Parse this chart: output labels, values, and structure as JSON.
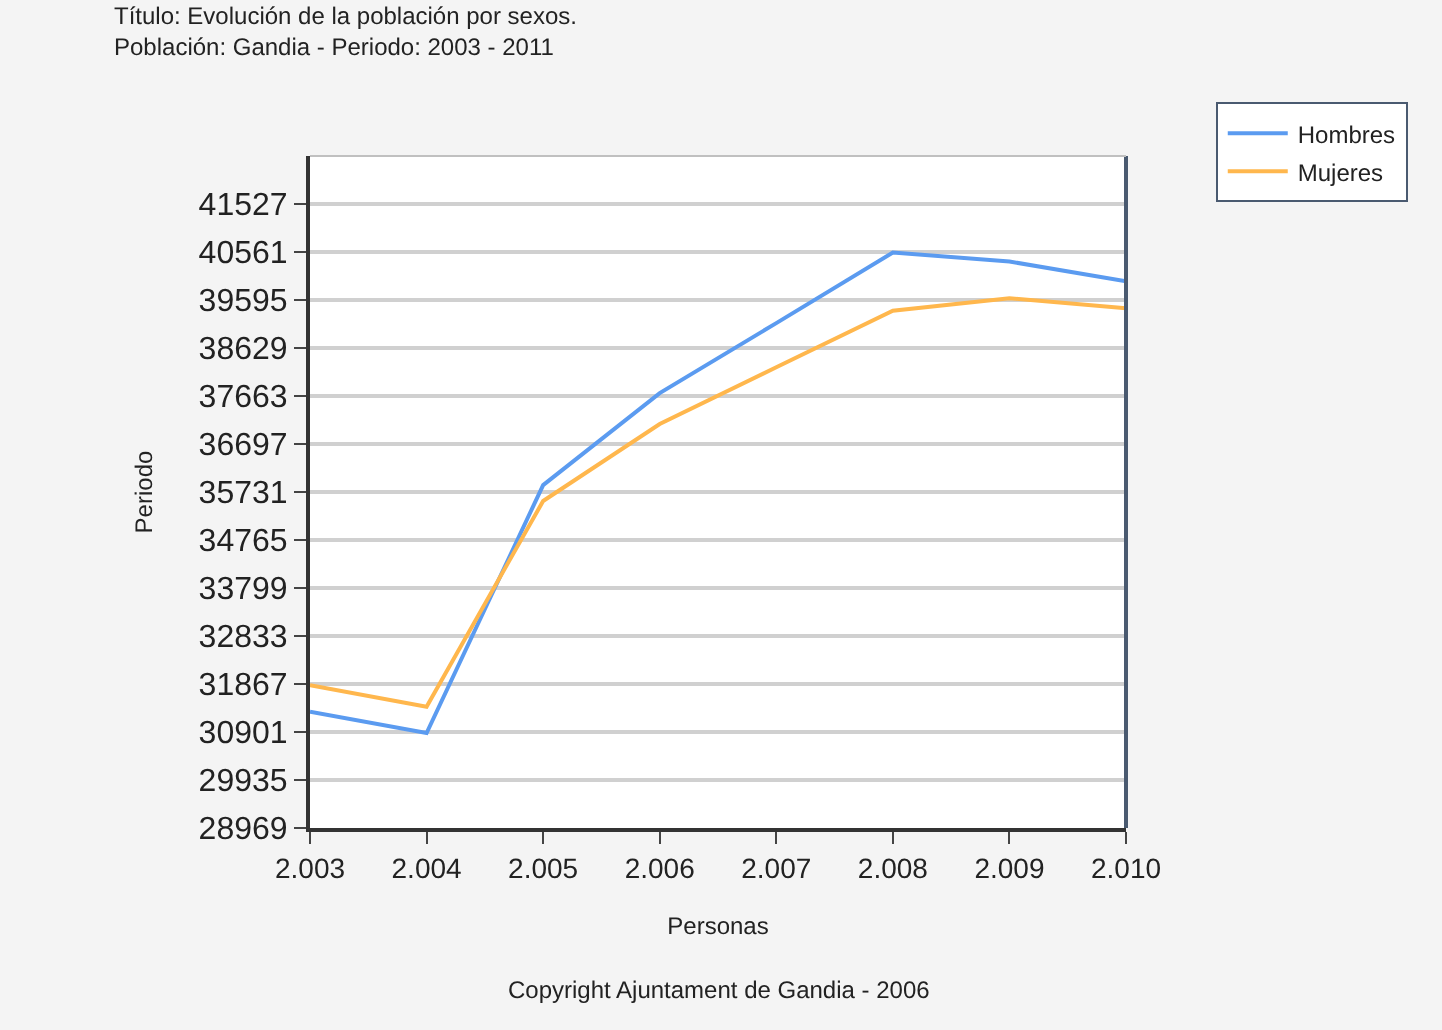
{
  "chart_data": {
    "type": "line",
    "title": "Título: Evolución de la población por sexos.",
    "subtitle": "Población: Gandia - Periodo: 2003 - 2011",
    "xlabel": "Personas",
    "ylabel": "Periodo",
    "annotations": [
      "Copyright Ajuntament de Gandia - 2006"
    ],
    "x": [
      2003,
      2004,
      2005,
      2006,
      2007,
      2008,
      2009,
      2010
    ],
    "series": [
      {
        "name": "Hombres",
        "color": "#5b9bf0",
        "values": [
          31310,
          30880,
          35870,
          37720,
          39130,
          40550,
          40370,
          39970
        ]
      },
      {
        "name": "Mujeres",
        "color": "#ffb74d",
        "values": [
          31840,
          31410,
          35550,
          37100,
          38240,
          39380,
          39630,
          39430
        ]
      }
    ],
    "xlim": [
      2003,
      2010
    ],
    "xticks": [
      {
        "value": 2003,
        "label": "2.003"
      },
      {
        "value": 2004,
        "label": "2.004"
      },
      {
        "value": 2005,
        "label": "2.005"
      },
      {
        "value": 2006,
        "label": "2.006"
      },
      {
        "value": 2007,
        "label": "2.007"
      },
      {
        "value": 2008,
        "label": "2.008"
      },
      {
        "value": 2009,
        "label": "2.009"
      },
      {
        "value": 2010,
        "label": "2.010"
      }
    ],
    "ylim": [
      28969,
      42493
    ],
    "yticks": [
      28969,
      29935,
      30901,
      31867,
      32833,
      33799,
      34765,
      35731,
      36697,
      37663,
      38629,
      39595,
      40561,
      41527
    ],
    "grid": "y",
    "legend": "top right",
    "marker": "none",
    "line_style": "solid"
  }
}
